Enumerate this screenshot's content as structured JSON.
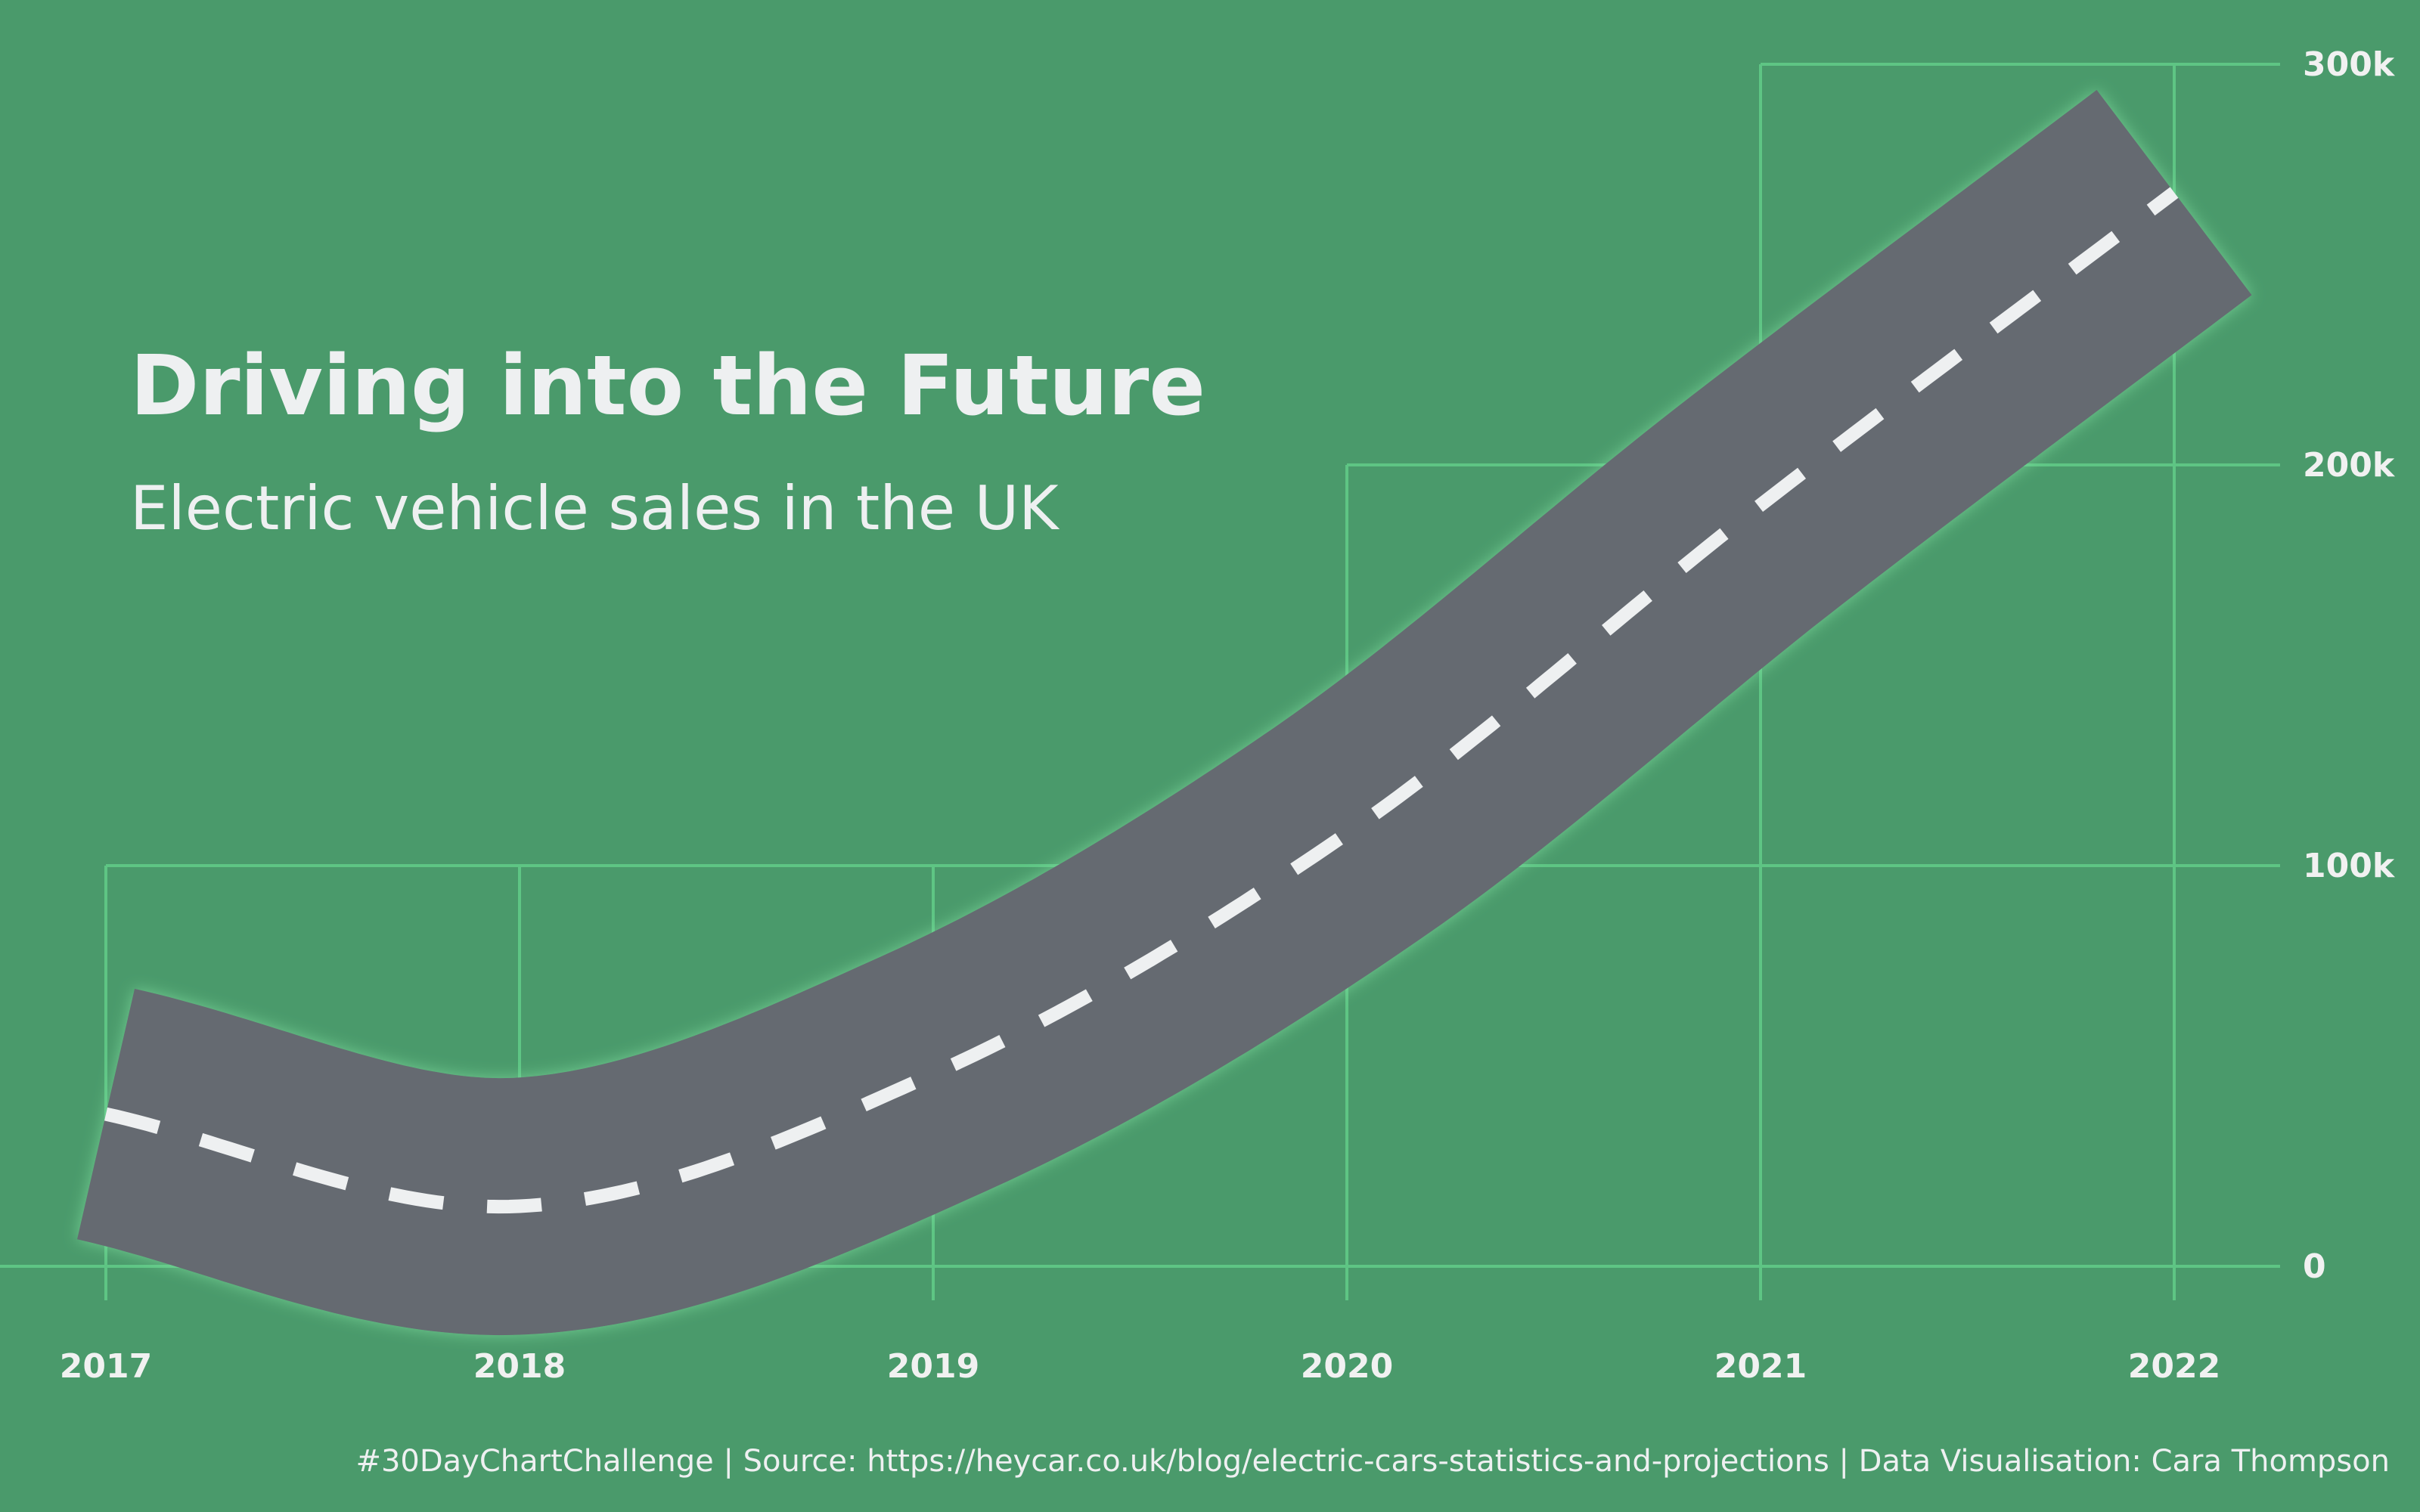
{
  "chart_data": {
    "type": "line",
    "title": "Driving into the Future",
    "subtitle": "Electric vehicle sales in the UK",
    "caption": "#30DayChartChallenge | Source: https://heycar.co.uk/blog/electric-cars-statistics-and-projections | Data Visualisation: Cara Thompson",
    "x_ticks": [
      "2017",
      "2018",
      "2019",
      "2020",
      "2021",
      "2022"
    ],
    "y_ticks": [
      "0",
      "100k",
      "200k",
      "300k"
    ],
    "y_tick_values": [
      0,
      100000,
      200000,
      300000
    ],
    "ylim": [
      0,
      300000
    ],
    "y_axis_position": "right",
    "series": [
      {
        "x": [
          2017,
          2018,
          2019,
          2020,
          2021,
          2022
        ],
        "values": [
          38000,
          15000,
          48000,
          108000,
          190000,
          268000
        ]
      }
    ],
    "colors": {
      "background": "#4a9a6b",
      "grid": "#5ec584",
      "road": "#656a71",
      "lane_marking": "#eef0f1",
      "text": "#eef0f1"
    }
  }
}
